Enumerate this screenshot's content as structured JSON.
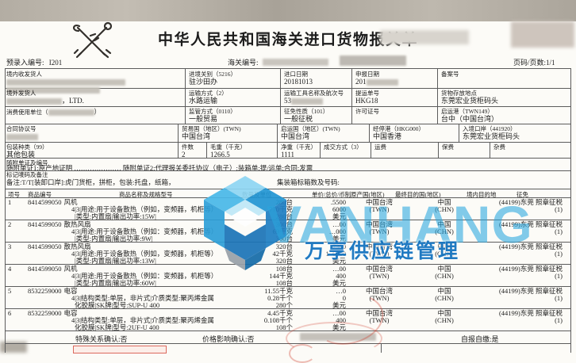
{
  "masthead": {
    "title": "中华人民共和国海关进口货物报关单",
    "pre_entry_label": "预录入编号:",
    "pre_entry_no": "I201",
    "customs_no_label": "海关编号:",
    "page_info": "页码/页数:1/1",
    "emblem_icon": "customs-emblem"
  },
  "info_rows": [
    {
      "cells": [
        {
          "label": "境内收发货人",
          "value": "",
          "blur": "lines2"
        },
        {
          "label": "进境关别（5216）",
          "value": "驻沙田办"
        },
        {
          "label": "进口日期",
          "value": "20181013"
        },
        {
          "label": "申报日期",
          "value": "201",
          "blur": "after"
        },
        {
          "label": "备案号",
          "value": ""
        }
      ]
    },
    {
      "cells": [
        {
          "label": "境外发货人",
          "value": "，LTD.",
          "blur": "before"
        },
        {
          "label": "运输方式（2）",
          "value": "水路运输"
        },
        {
          "label": "运输工具名称及航次号",
          "value": "53",
          "blur": "after"
        },
        {
          "label": "提运单号",
          "value": "HKG18"
        },
        {
          "label": "货物存放地点",
          "value": "东莞宏业货柜码头"
        }
      ]
    },
    {
      "cells": [
        {
          "label": "消费使用单位（",
          "value": "）",
          "blur": "inline"
        },
        {
          "label": "监管方式（0110）",
          "value": "一般贸易"
        },
        {
          "label": "征免性质（101）",
          "value": "一般征税"
        },
        {
          "label": "许可证号",
          "value": ""
        },
        {
          "label": "启运港（TWN149）",
          "value": "台中（中国台湾）"
        }
      ]
    },
    {
      "cells": [
        {
          "label": "合同协议号",
          "value": "",
          "blur": "after"
        },
        {
          "label": "贸易国（地区）(TWN)",
          "value": "中国台湾"
        },
        {
          "label": "启运国（地区）(TWN)",
          "value": "中国台湾"
        },
        {
          "label": "经停港（HKG000）",
          "value": "中国香港"
        },
        {
          "label": "入境口岸（441920）",
          "value": "东莞宏业货柜码头"
        }
      ]
    },
    {
      "cells": [
        {
          "label": "包装种类（99）",
          "value": "其他包装"
        },
        {
          "label": "件数",
          "value": "2"
        },
        {
          "label": "毛重（千克）",
          "value": "1266.5"
        },
        {
          "label": "净重（千克）",
          "value": "1111"
        },
        {
          "label": "成交方式（3）",
          "value": ""
        },
        {
          "label": "运费",
          "value": ""
        },
        {
          "label": "保费",
          "value": ""
        },
        {
          "label": "杂费",
          "value": ""
        }
      ]
    }
  ],
  "docs_row": {
    "label": "随附单证及编号",
    "content": "随附单证1:原产地证明 ………………… 随附单证2:代理报关委托协议（电子）;装箱单:提/运单:合同:发票"
  },
  "marks_row": {
    "label": "标记唛码及备注",
    "note": "备注:T/T[装卸口岸]:虎门货柜，拼柜，包装:托盘，纸箱，",
    "container_label": "集装箱标箱数及号码:"
  },
  "goods": {
    "headers": [
      "项号",
      "商品编号",
      "商品名称及规格型号",
      "数量及单位",
      "单价/总价/币制",
      "原产国(地区)",
      "最终目的国(地区)",
      "境内目的地",
      "征免"
    ],
    "items": [
      {
        "no": "1",
        "hs_code": "8414599050",
        "name": "风机",
        "desc1": "4|3|用途:用于设备散热（例如，变频器，机柜等）",
        "desc2": "|类型:内置扇|输出功率:15W|",
        "qty": [
          "280台",
          "770千克",
          "280台"
        ],
        "price": [
          ".5500",
          "6000",
          "美元"
        ],
        "origin": "中国台湾",
        "origin_code": "(TWN)",
        "dest": "中国",
        "dest_code": "(CHN)",
        "inland_levy": "(44199)东莞 照章征税",
        "levy_mode": "(1)"
      },
      {
        "no": "2",
        "hs_code": "8414599050",
        "name": "散热风扇",
        "desc1": "4|3|用途:用于设备散热（例如：变频器，机柜等）",
        "desc2": "|类型:内置扇|输出功率:9W|",
        "qty": [
          "300台",
          "69千克",
          "300台"
        ],
        "price": [
          "…00",
          "…000",
          "美元"
        ],
        "origin": "中国台湾",
        "origin_code": "(TWN)",
        "dest": "中国",
        "dest_code": "(CHN)",
        "inland_levy": "(44199)东莞 照章征税",
        "levy_mode": "(1)"
      },
      {
        "no": "3",
        "hs_code": "8414599050",
        "name": "散热风扇",
        "desc1": "4|3|用途:用于设备散热（例如，变频器，机柜等）",
        "desc2": "|类型:内置扇|输出功率:13W|",
        "qty": [
          "320台",
          "42千克",
          "320台"
        ],
        "price": [
          "7300",
          "1  6000",
          "美元"
        ],
        "origin": "中国台湾",
        "origin_code": "(TWN)",
        "dest": "中国",
        "dest_code": "(CHN)",
        "inland_levy": "(44199)东莞 照章征税",
        "levy_mode": "(1)"
      },
      {
        "no": "4",
        "hs_code": "8414599050",
        "name": "风机",
        "desc1": "4|3|用途:用于设备散热（例如：变频器，机柜等）",
        "desc2": "|类型:内置扇|输出功率:60W|",
        "qty": [
          "108台",
          "144千克",
          "108台"
        ],
        "price": [
          "…00",
          "400",
          "美元"
        ],
        "origin": "中国台湾",
        "origin_code": "(TWN)",
        "dest": "中国",
        "dest_code": "(CHN)",
        "inland_levy": "(44199)东莞 照章征税",
        "levy_mode": "(1)"
      },
      {
        "no": "5",
        "hs_code": "8532259000",
        "name": "电容",
        "desc1": "4|3|结构类型:单层，非片式|介质类型:聚丙烯金属",
        "desc2": "化胶膜|SK牌|型号:SUP-U 400",
        "qty": [
          "11.55千克",
          "0.28千个",
          "280个"
        ],
        "price": [
          "…0",
          "0",
          "美元"
        ],
        "origin": "中国台湾",
        "origin_code": "(TWN)",
        "dest": "中国",
        "dest_code": "(CHN)",
        "inland_levy": "(44199)东莞 照章征税",
        "levy_mode": "(1)"
      },
      {
        "no": "6",
        "hs_code": "8532259000",
        "name": "电容",
        "desc1": "4|3|结构类型:单层，非片式|介质类型:聚丙烯金属",
        "desc2": "化胶膜|SK牌|型号:2UF-U 400",
        "qty": [
          "4.45千克",
          "0.108千个",
          "108个"
        ],
        "price": [
          "…00",
          "400",
          "美元"
        ],
        "origin": "中国台湾",
        "origin_code": "(TWN)",
        "dest": "中国",
        "dest_code": "(CHN)",
        "inland_levy": "(44199)东莞 照章征税",
        "levy_mode": "(1)"
      }
    ]
  },
  "footer": {
    "special_relation": "特殊关系确认:否",
    "price_impact": "价格影响确认:否",
    "self_declare": "自报自缴:是"
  },
  "watermark": {
    "brand": "VANHANG",
    "brand_cn": "万享供应链管理",
    "logo_icon": "wanhang-cube-logo",
    "color": "#2aa7df"
  },
  "colors": {
    "watermark_blue": "#2aa7df",
    "watermark_dark_blue": "#1574c0",
    "stamp_red": "#cd3728"
  }
}
